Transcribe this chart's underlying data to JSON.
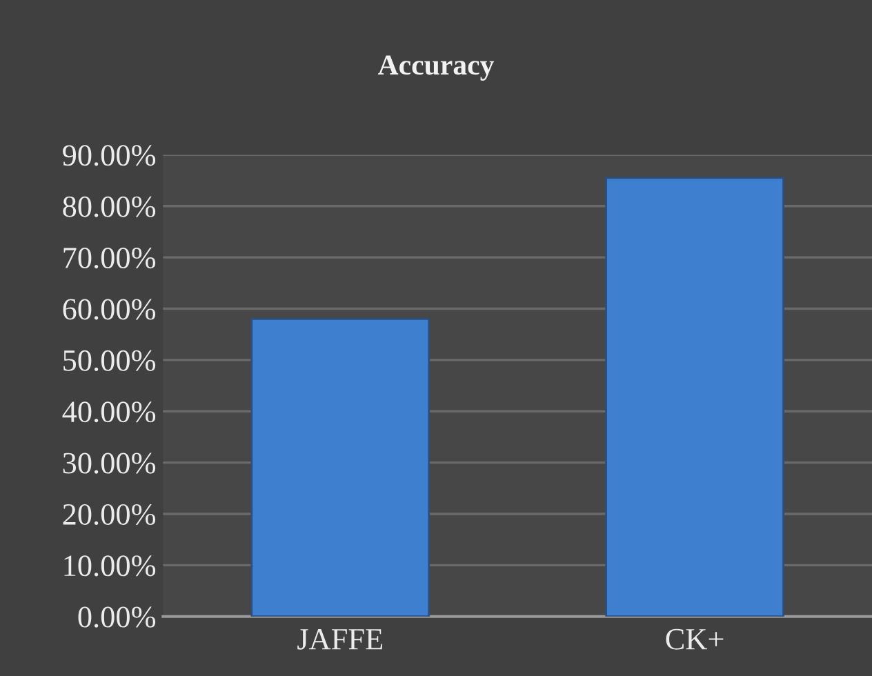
{
  "chart_data": {
    "type": "bar",
    "title": "Accuracy",
    "categories": [
      "JAFFE",
      "CK+"
    ],
    "values": [
      58,
      85.5
    ],
    "color": "#3f7fcf",
    "ylim": [
      0,
      90
    ],
    "yticks": [
      {
        "value": 0,
        "label": "0.00%"
      },
      {
        "value": 10,
        "label": "10.00%"
      },
      {
        "value": 20,
        "label": "20.00%"
      },
      {
        "value": 30,
        "label": "30.00%"
      },
      {
        "value": 40,
        "label": "40.00%"
      },
      {
        "value": 50,
        "label": "50.00%"
      },
      {
        "value": 60,
        "label": "60.00%"
      },
      {
        "value": 70,
        "label": "70.00%"
      },
      {
        "value": 80,
        "label": "80.00%"
      },
      {
        "value": 90,
        "label": "90.00%"
      }
    ],
    "grid": "y"
  }
}
